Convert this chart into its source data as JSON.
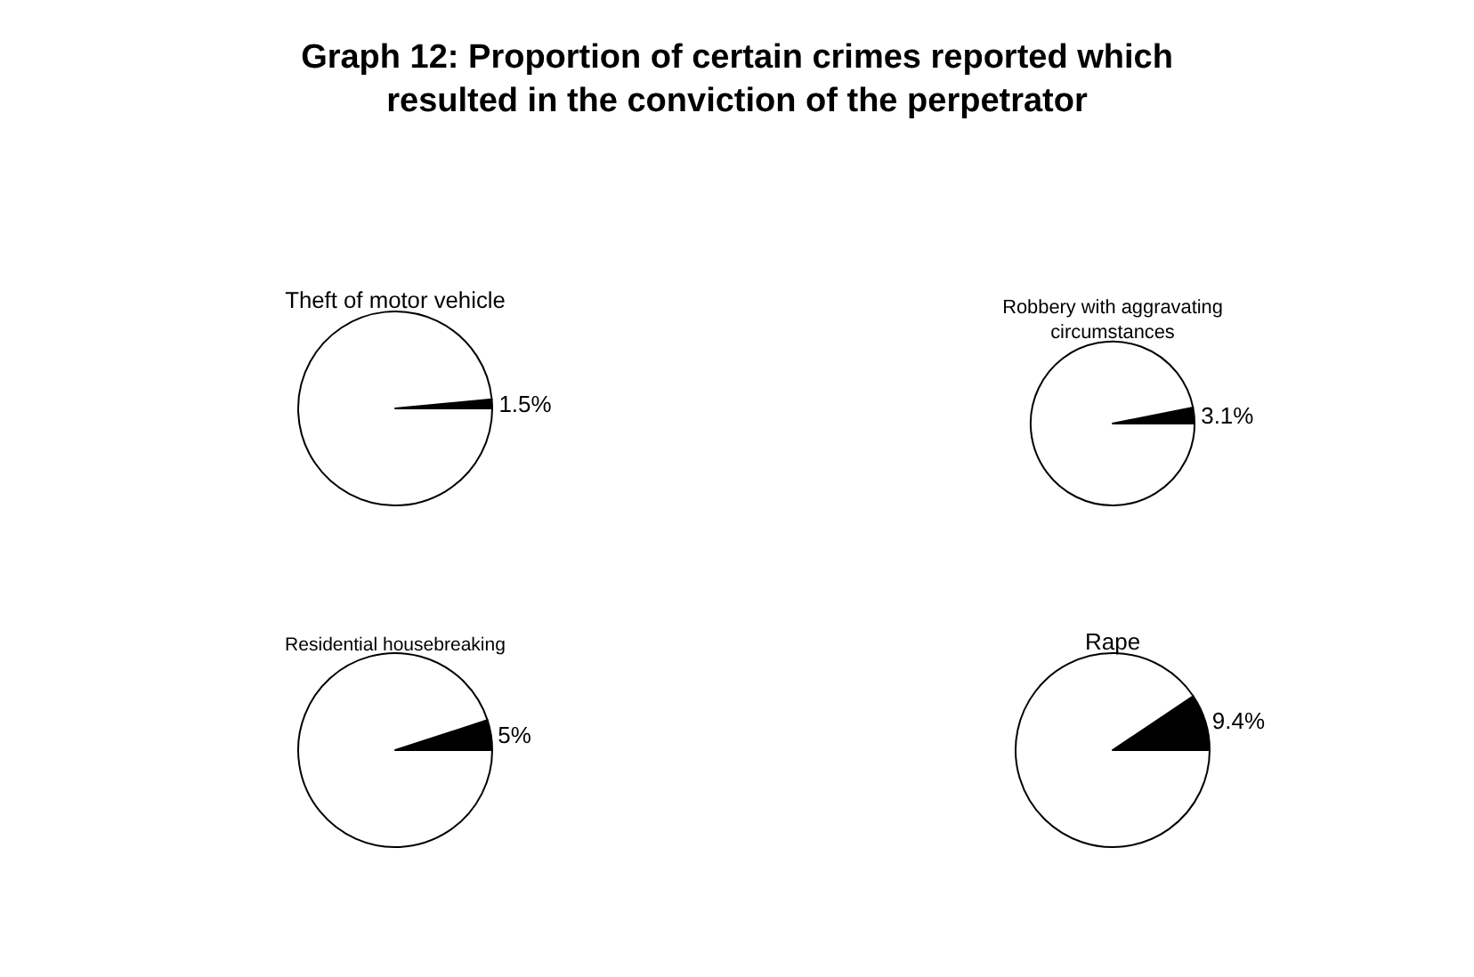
{
  "chart_data": [
    {
      "type": "other",
      "title": "Graph 12: Proportion of certain crimes reported which resulted in the conviction of the perpetrator"
    },
    {
      "type": "pie",
      "title": "Theft of motor vehicle",
      "categories": [
        null,
        null
      ],
      "values": [
        1.5,
        98.5
      ],
      "colors": [
        "#000000",
        "#ffffff"
      ],
      "value_labels": [
        "1.5%",
        null
      ]
    },
    {
      "type": "pie",
      "title": "Robbery with aggravating circumstances",
      "categories": [
        null,
        null
      ],
      "values": [
        3.1,
        96.9
      ],
      "colors": [
        "#000000",
        "#ffffff"
      ],
      "value_labels": [
        "3.1%",
        null
      ]
    },
    {
      "type": "pie",
      "title": "Residential housebreaking",
      "categories": [
        null,
        null
      ],
      "values": [
        5,
        95
      ],
      "colors": [
        "#000000",
        "#ffffff"
      ],
      "value_labels": [
        "5%",
        null
      ]
    },
    {
      "type": "pie",
      "title": "Rape",
      "categories": [
        null,
        null
      ],
      "values": [
        9.4,
        90.6
      ],
      "colors": [
        "#000000",
        "#ffffff"
      ],
      "value_labels": [
        "9.4%",
        null
      ]
    }
  ]
}
